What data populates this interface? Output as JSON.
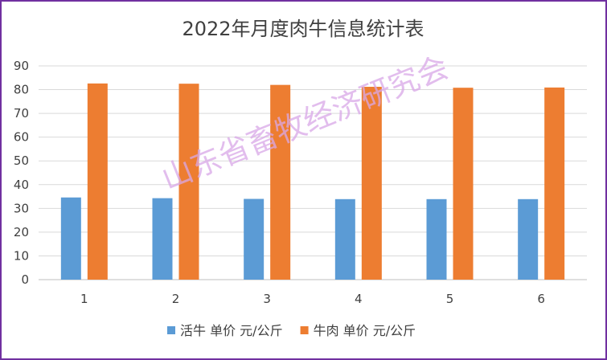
{
  "chart_data": {
    "type": "bar",
    "title": "2022年月度肉牛信息统计表",
    "categories": [
      "1",
      "2",
      "3",
      "4",
      "5",
      "6"
    ],
    "series": [
      {
        "name": "活牛 单价 元/公斤",
        "values": [
          34.6,
          34.3,
          34.0,
          33.9,
          33.9,
          33.9
        ],
        "color": "#5b9bd5"
      },
      {
        "name": "牛肉 单价 元/公斤",
        "values": [
          82.6,
          82.5,
          82.0,
          81.2,
          80.8,
          80.9
        ],
        "color": "#ed7d31"
      }
    ],
    "ylim": [
      0,
      90
    ],
    "yticks": [
      0,
      10,
      20,
      30,
      40,
      50,
      60,
      70,
      80,
      90
    ],
    "grid": true,
    "legend_position": "bottom"
  },
  "watermark": "山东省畜牧经济研究会",
  "colors": {
    "border": "#7030a0",
    "gridline": "#d9d9d9",
    "axis": "#bfbfbf"
  }
}
